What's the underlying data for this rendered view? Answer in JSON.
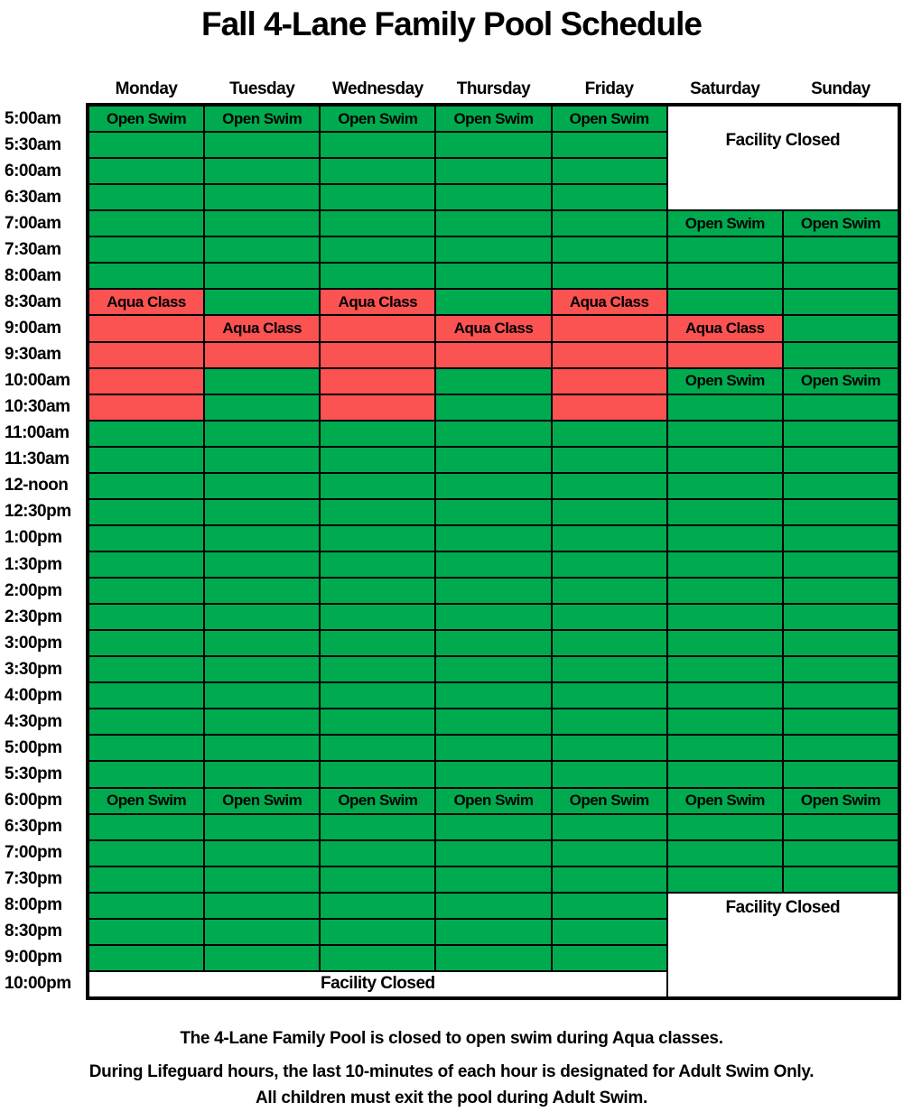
{
  "title": "Fall 4-Lane Family Pool Schedule",
  "colors": {
    "open_swim_green": "#00AB4F",
    "aqua_class_red": "#FB5252",
    "facility_closed_white": "#FFFFFF",
    "grid_line_black": "#000000"
  },
  "labels": {
    "open_swim": "Open Swim",
    "aqua_class": "Aqua Class",
    "facility_closed": "Facility Closed"
  },
  "schedule": {
    "days": [
      "Monday",
      "Tuesday",
      "Wednesday",
      "Thursday",
      "Friday",
      "Saturday",
      "Sunday"
    ],
    "cell_codes_legend": "O=open swim (green, unlabeled), OS=open swim with label, A=aqua class (red, unlabeled), AC=aqua class with label, X=covered by facility-closed block",
    "rows": [
      {
        "time": "5:00am",
        "cells": [
          "OS",
          "OS",
          "OS",
          "OS",
          "OS",
          "X",
          "X"
        ]
      },
      {
        "time": "5:30am",
        "cells": [
          "O",
          "O",
          "O",
          "O",
          "O",
          "X",
          "X"
        ]
      },
      {
        "time": "6:00am",
        "cells": [
          "O",
          "O",
          "O",
          "O",
          "O",
          "X",
          "X"
        ]
      },
      {
        "time": "6:30am",
        "cells": [
          "O",
          "O",
          "O",
          "O",
          "O",
          "X",
          "X"
        ]
      },
      {
        "time": "7:00am",
        "cells": [
          "O",
          "O",
          "O",
          "O",
          "O",
          "OS",
          "OS"
        ]
      },
      {
        "time": "7:30am",
        "cells": [
          "O",
          "O",
          "O",
          "O",
          "O",
          "O",
          "O"
        ]
      },
      {
        "time": "8:00am",
        "cells": [
          "O",
          "O",
          "O",
          "O",
          "O",
          "O",
          "O"
        ]
      },
      {
        "time": "8:30am",
        "cells": [
          "AC",
          "O",
          "AC",
          "O",
          "AC",
          "O",
          "O"
        ]
      },
      {
        "time": "9:00am",
        "cells": [
          "A",
          "AC",
          "A",
          "AC",
          "A",
          "AC",
          "O"
        ]
      },
      {
        "time": "9:30am",
        "cells": [
          "A",
          "A",
          "A",
          "A",
          "A",
          "A",
          "O"
        ]
      },
      {
        "time": "10:00am",
        "cells": [
          "A",
          "O",
          "A",
          "O",
          "A",
          "OS",
          "OS"
        ]
      },
      {
        "time": "10:30am",
        "cells": [
          "A",
          "O",
          "A",
          "O",
          "A",
          "O",
          "O"
        ]
      },
      {
        "time": "11:00am",
        "cells": [
          "O",
          "O",
          "O",
          "O",
          "O",
          "O",
          "O"
        ]
      },
      {
        "time": "11:30am",
        "cells": [
          "O",
          "O",
          "O",
          "O",
          "O",
          "O",
          "O"
        ]
      },
      {
        "time": "12-noon",
        "cells": [
          "O",
          "O",
          "O",
          "O",
          "O",
          "O",
          "O"
        ]
      },
      {
        "time": "12:30pm",
        "cells": [
          "O",
          "O",
          "O",
          "O",
          "O",
          "O",
          "O"
        ]
      },
      {
        "time": "1:00pm",
        "cells": [
          "O",
          "O",
          "O",
          "O",
          "O",
          "O",
          "O"
        ]
      },
      {
        "time": "1:30pm",
        "cells": [
          "O",
          "O",
          "O",
          "O",
          "O",
          "O",
          "O"
        ]
      },
      {
        "time": "2:00pm",
        "cells": [
          "O",
          "O",
          "O",
          "O",
          "O",
          "O",
          "O"
        ]
      },
      {
        "time": "2:30pm",
        "cells": [
          "O",
          "O",
          "O",
          "O",
          "O",
          "O",
          "O"
        ]
      },
      {
        "time": "3:00pm",
        "cells": [
          "O",
          "O",
          "O",
          "O",
          "O",
          "O",
          "O"
        ]
      },
      {
        "time": "3:30pm",
        "cells": [
          "O",
          "O",
          "O",
          "O",
          "O",
          "O",
          "O"
        ]
      },
      {
        "time": "4:00pm",
        "cells": [
          "O",
          "O",
          "O",
          "O",
          "O",
          "O",
          "O"
        ]
      },
      {
        "time": "4:30pm",
        "cells": [
          "O",
          "O",
          "O",
          "O",
          "O",
          "O",
          "O"
        ]
      },
      {
        "time": "5:00pm",
        "cells": [
          "O",
          "O",
          "O",
          "O",
          "O",
          "O",
          "O"
        ]
      },
      {
        "time": "5:30pm",
        "cells": [
          "O",
          "O",
          "O",
          "O",
          "O",
          "O",
          "O"
        ]
      },
      {
        "time": "6:00pm",
        "cells": [
          "OS",
          "OS",
          "OS",
          "OS",
          "OS",
          "OS",
          "OS"
        ]
      },
      {
        "time": "6:30pm",
        "cells": [
          "O",
          "O",
          "O",
          "O",
          "O",
          "O",
          "O"
        ]
      },
      {
        "time": "7:00pm",
        "cells": [
          "O",
          "O",
          "O",
          "O",
          "O",
          "O",
          "O"
        ]
      },
      {
        "time": "7:30pm",
        "cells": [
          "O",
          "O",
          "O",
          "O",
          "O",
          "O",
          "O"
        ]
      },
      {
        "time": "8:00pm",
        "cells": [
          "O",
          "O",
          "O",
          "O",
          "O",
          "X",
          "X"
        ]
      },
      {
        "time": "8:30pm",
        "cells": [
          "O",
          "O",
          "O",
          "O",
          "O",
          "X",
          "X"
        ]
      },
      {
        "time": "9:00pm",
        "cells": [
          "O",
          "O",
          "O",
          "O",
          "O",
          "X",
          "X"
        ]
      },
      {
        "time": "10:00pm",
        "cells": [
          "X",
          "X",
          "X",
          "X",
          "X",
          "X",
          "X"
        ]
      }
    ],
    "closed_blocks": [
      {
        "name": "facility-closed-weekend-morning",
        "row": 1,
        "col": 6,
        "row_span": 4,
        "col_span": 2,
        "label_align": "upper"
      },
      {
        "name": "facility-closed-weekend-night",
        "row": 31,
        "col": 6,
        "row_span": 4,
        "col_span": 2,
        "label_align": "top"
      },
      {
        "name": "facility-closed-weekday-night",
        "row": 34,
        "col": 1,
        "row_span": 1,
        "col_span": 5,
        "label_align": "center"
      }
    ]
  },
  "footer": {
    "line1": "The 4-Lane Family Pool is closed to open swim during Aqua classes.",
    "line2": "During Lifeguard hours, the last 10-minutes of each hour is designated for Adult Swim Only.",
    "line3": "All children must exit the pool during Adult Swim."
  }
}
